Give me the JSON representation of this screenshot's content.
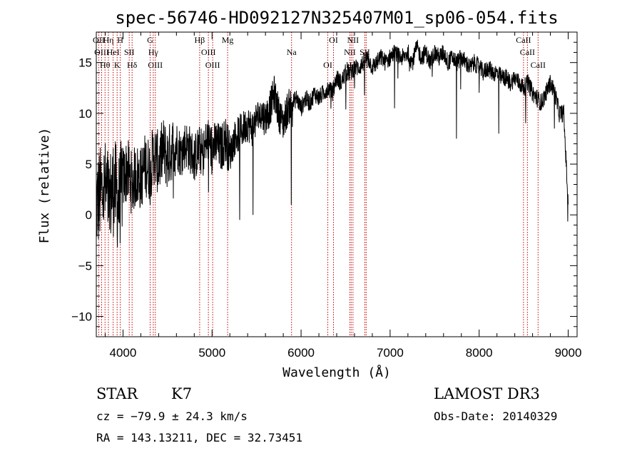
{
  "chart_data": {
    "type": "line",
    "title": "spec-56746-HD092127N325407M01_sp06-054.fits",
    "xlabel": "Wavelength (Å)",
    "ylabel": "Flux (relative)",
    "xlim": [
      3700,
      9100
    ],
    "ylim": [
      -12,
      18
    ],
    "x_ticks": [
      4000,
      5000,
      6000,
      7000,
      8000,
      9000
    ],
    "y_ticks": [
      -10,
      -5,
      0,
      5,
      10,
      15
    ],
    "grid": false,
    "series": [
      {
        "name": "flux",
        "x": [
          3700,
          3750,
          3800,
          3850,
          3900,
          3950,
          4000,
          4050,
          4100,
          4150,
          4200,
          4250,
          4300,
          4350,
          4400,
          4450,
          4500,
          4550,
          4600,
          4650,
          4700,
          4750,
          4800,
          4850,
          4900,
          4950,
          5000,
          5050,
          5100,
          5150,
          5200,
          5250,
          5300,
          5350,
          5400,
          5450,
          5500,
          5550,
          5600,
          5650,
          5700,
          5750,
          5800,
          5850,
          5900,
          5950,
          6000,
          6050,
          6100,
          6150,
          6200,
          6250,
          6300,
          6350,
          6400,
          6450,
          6500,
          6550,
          6600,
          6650,
          6700,
          6750,
          6800,
          6850,
          6900,
          6950,
          7000,
          7050,
          7100,
          7150,
          7200,
          7250,
          7300,
          7350,
          7400,
          7450,
          7500,
          7550,
          7600,
          7650,
          7700,
          7750,
          7800,
          7850,
          7900,
          7950,
          8000,
          8050,
          8100,
          8150,
          8200,
          8250,
          8300,
          8350,
          8400,
          8450,
          8500,
          8550,
          8600,
          8650,
          8700,
          8750,
          8800,
          8850,
          8900,
          8950,
          9000
        ],
        "values": [
          1.0,
          2.0,
          2.5,
          1.5,
          3.0,
          1.0,
          3.5,
          4.5,
          3.0,
          4.0,
          3.5,
          5.0,
          4.5,
          6.0,
          5.0,
          6.5,
          5.5,
          6.5,
          7.0,
          6.0,
          7.0,
          6.5,
          5.5,
          6.5,
          6.0,
          7.5,
          6.5,
          7.0,
          6.5,
          7.5,
          6.0,
          7.5,
          8.0,
          8.5,
          9.0,
          8.5,
          9.5,
          10.0,
          9.5,
          10.5,
          12.0,
          10.0,
          9.0,
          10.5,
          11.0,
          11.5,
          10.5,
          11.5,
          11.0,
          12.0,
          11.5,
          12.0,
          12.5,
          12.0,
          13.5,
          13.0,
          14.0,
          14.0,
          14.5,
          14.5,
          15.0,
          15.5,
          14.5,
          15.0,
          15.5,
          15.0,
          15.5,
          16.0,
          15.5,
          15.5,
          16.0,
          15.0,
          16.5,
          15.5,
          16.0,
          15.0,
          16.0,
          15.5,
          16.0,
          15.0,
          15.5,
          15.0,
          15.5,
          15.0,
          14.5,
          15.0,
          14.5,
          14.0,
          14.5,
          14.0,
          14.0,
          13.5,
          13.5,
          13.0,
          13.5,
          13.0,
          12.5,
          13.0,
          12.0,
          11.5,
          11.0,
          12.0,
          13.0,
          12.0,
          10.0,
          10.0,
          1.0
        ]
      }
    ],
    "absorption_dips": [
      {
        "x": 5890,
        "y": 1.0
      },
      {
        "x": 5460,
        "y": 0.0
      },
      {
        "x": 5310,
        "y": -0.5
      },
      {
        "x": 7745,
        "y": 7.5
      },
      {
        "x": 8220,
        "y": 8.0
      },
      {
        "x": 7050,
        "y": 10.5
      },
      {
        "x": 8845,
        "y": 8.5
      }
    ],
    "spectral_lines": [
      {
        "name": "Hθ",
        "x": 3798
      },
      {
        "name": "OII",
        "x": 3727
      },
      {
        "name": "OIII",
        "x": 3760
      },
      {
        "name": "Hη",
        "x": 3836
      },
      {
        "name": "K",
        "x": 3934
      },
      {
        "name": "HeI",
        "x": 3889
      },
      {
        "name": "H",
        "x": 3969
      },
      {
        "name": "Hδ",
        "x": 4102
      },
      {
        "name": "SII",
        "x": 4070
      },
      {
        "name": "OIII",
        "x": 4363
      },
      {
        "name": "Hγ",
        "x": 4340
      },
      {
        "name": "G",
        "x": 4305
      },
      {
        "name": "Hβ",
        "x": 4861
      },
      {
        "name": "OIII",
        "x": 4959
      },
      {
        "name": "OIII",
        "x": 5007
      },
      {
        "name": "Mg",
        "x": 5175
      },
      {
        "name": "Na",
        "x": 5893
      },
      {
        "name": "OI",
        "x": 6300
      },
      {
        "name": "OI",
        "x": 6364
      },
      {
        "name": "Hα",
        "x": 6563
      },
      {
        "name": "NII",
        "x": 6548
      },
      {
        "name": "NII",
        "x": 6583
      },
      {
        "name": "SII",
        "x": 6716
      },
      {
        "name": "SII",
        "x": 6731
      },
      {
        "name": "CaII",
        "x": 8498
      },
      {
        "name": "CaII",
        "x": 8542
      },
      {
        "name": "CaII",
        "x": 8662
      }
    ]
  },
  "info": {
    "object_class": "STAR",
    "subclass": "K7",
    "survey": "LAMOST DR3",
    "velocity": "cz = −79.9 ± 24.3 km/s",
    "obs_date": "Obs-Date: 20140329",
    "coords": "RA = 143.13211, DEC =  32.73451"
  },
  "colors": {
    "spectrum": "#000000",
    "line_markers": "#c00000"
  }
}
